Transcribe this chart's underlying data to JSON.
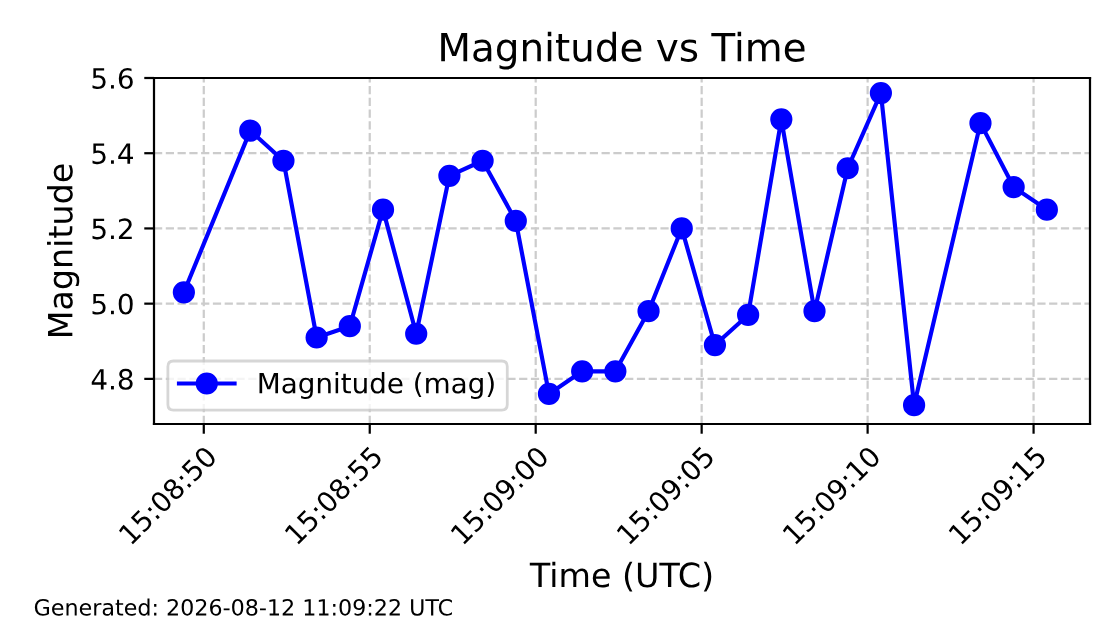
{
  "chart_data": {
    "type": "line",
    "title": "Magnitude vs Time",
    "xlabel": "Time (UTC)",
    "ylabel": "Magnitude",
    "x": [
      15.1470556,
      15.1476111,
      15.1478889,
      15.1481667,
      15.1484444,
      15.1487222,
      15.149,
      15.1492778,
      15.1495556,
      15.1498333,
      15.1501111,
      15.1503889,
      15.1506667,
      15.1509444,
      15.1512222,
      15.1515,
      15.1517778,
      15.1520556,
      15.1523333,
      15.1526111,
      15.1528889,
      15.1531667,
      15.1537222,
      15.154,
      15.1542778
    ],
    "series": [
      {
        "name": "Magnitude (mag)",
        "color": "#0000ff",
        "values": [
          5.03,
          5.46,
          5.38,
          4.91,
          4.94,
          5.25,
          4.92,
          5.34,
          5.38,
          5.22,
          4.76,
          4.82,
          4.82,
          4.98,
          5.2,
          4.89,
          4.97,
          5.49,
          4.98,
          5.36,
          5.56,
          4.73,
          5.48,
          5.31,
          5.25
        ]
      }
    ],
    "xlim": [
      15.1468056,
      15.1546389
    ],
    "xticks": [
      {
        "value": 15.1472222,
        "label": "15:08:50"
      },
      {
        "value": 15.1486111,
        "label": "15:08:55"
      },
      {
        "value": 15.15,
        "label": "15:09:00"
      },
      {
        "value": 15.1513889,
        "label": "15:09:05"
      },
      {
        "value": 15.1527778,
        "label": "15:09:10"
      },
      {
        "value": 15.1541667,
        "label": "15:09:15"
      }
    ],
    "ylim": [
      4.68,
      5.6
    ],
    "yticks": [
      4.8,
      {
        "value": 5,
        "label": "5.0"
      },
      5.2,
      5.4,
      5.6
    ],
    "grid": true,
    "legend": "bottom left",
    "marker": "circle",
    "line_style": "solid",
    "annotations": [
      "Generated: 2026-08-12 11:09:22 UTC"
    ]
  }
}
